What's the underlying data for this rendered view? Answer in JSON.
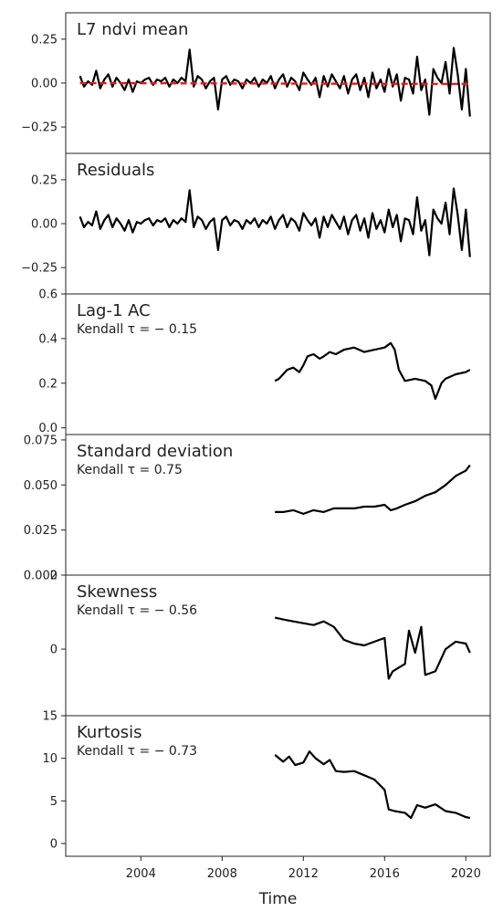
{
  "chart_data": [
    {
      "type": "line",
      "title": "L7 ndvi mean",
      "ylim": [
        -0.4,
        0.4
      ],
      "yticks": [
        -0.25,
        0.0,
        0.25
      ],
      "ytick_labels": [
        "−0.25",
        "0.00",
        "0.25"
      ],
      "series": [
        {
          "color": "#000000",
          "style": "solid",
          "x": [
            2001.0,
            2001.2,
            2001.4,
            2001.6,
            2001.8,
            2002.0,
            2002.2,
            2002.4,
            2002.6,
            2002.8,
            2003.0,
            2003.2,
            2003.4,
            2003.6,
            2003.8,
            2004.0,
            2004.2,
            2004.4,
            2004.6,
            2004.8,
            2005.0,
            2005.2,
            2005.4,
            2005.6,
            2005.8,
            2006.0,
            2006.2,
            2006.4,
            2006.6,
            2006.8,
            2007.0,
            2007.2,
            2007.4,
            2007.6,
            2007.8,
            2008.0,
            2008.2,
            2008.4,
            2008.6,
            2008.8,
            2009.0,
            2009.2,
            2009.4,
            2009.6,
            2009.8,
            2010.0,
            2010.2,
            2010.4,
            2010.6,
            2010.8,
            2011.0,
            2011.2,
            2011.4,
            2011.6,
            2011.8,
            2012.0,
            2012.2,
            2012.4,
            2012.6,
            2012.8,
            2013.0,
            2013.2,
            2013.4,
            2013.6,
            2013.8,
            2014.0,
            2014.2,
            2014.4,
            2014.6,
            2014.8,
            2015.0,
            2015.2,
            2015.4,
            2015.6,
            2015.8,
            2016.0,
            2016.2,
            2016.4,
            2016.6,
            2016.8,
            2017.0,
            2017.2,
            2017.4,
            2017.6,
            2017.8,
            2018.0,
            2018.2,
            2018.4,
            2018.6,
            2018.8,
            2019.0,
            2019.2,
            2019.4,
            2019.6,
            2019.8,
            2020.0,
            2020.2
          ],
          "y": [
            0.04,
            -0.02,
            0.01,
            -0.01,
            0.07,
            -0.03,
            0.02,
            0.05,
            -0.02,
            0.03,
            0.0,
            -0.04,
            0.02,
            -0.05,
            0.01,
            0.0,
            0.02,
            0.03,
            -0.01,
            0.02,
            0.01,
            0.03,
            -0.02,
            0.02,
            0.0,
            0.03,
            0.01,
            0.19,
            -0.02,
            0.04,
            0.02,
            -0.03,
            0.01,
            0.03,
            -0.15,
            0.02,
            0.04,
            -0.01,
            0.02,
            0.01,
            -0.03,
            0.02,
            0.0,
            0.03,
            -0.02,
            0.02,
            0.0,
            0.04,
            -0.03,
            0.02,
            0.05,
            -0.02,
            0.03,
            0.01,
            -0.04,
            0.06,
            0.02,
            -0.01,
            0.03,
            -0.08,
            0.04,
            -0.02,
            0.05,
            0.01,
            -0.03,
            0.04,
            -0.06,
            0.02,
            0.05,
            -0.04,
            0.03,
            -0.08,
            0.06,
            -0.03,
            0.02,
            -0.05,
            0.08,
            -0.02,
            0.05,
            -0.1,
            0.03,
            0.02,
            -0.06,
            0.15,
            -0.04,
            0.02,
            -0.18,
            0.08,
            0.03,
            0.0,
            0.12,
            -0.06,
            0.2,
            0.05,
            -0.15,
            0.08,
            -0.19
          ]
        },
        {
          "color": "#e41a1c",
          "style": "dashed",
          "x": [
            2001.0,
            2020.2
          ],
          "y": [
            0.0,
            -0.005
          ]
        }
      ]
    },
    {
      "type": "line",
      "title": "Residuals",
      "ylim": [
        -0.4,
        0.4
      ],
      "yticks": [
        -0.25,
        0.0,
        0.25
      ],
      "ytick_labels": [
        "−0.25",
        "0.00",
        "0.25"
      ],
      "series": [
        {
          "color": "#000000",
          "style": "solid",
          "x": [
            2001.0,
            2001.2,
            2001.4,
            2001.6,
            2001.8,
            2002.0,
            2002.2,
            2002.4,
            2002.6,
            2002.8,
            2003.0,
            2003.2,
            2003.4,
            2003.6,
            2003.8,
            2004.0,
            2004.2,
            2004.4,
            2004.6,
            2004.8,
            2005.0,
            2005.2,
            2005.4,
            2005.6,
            2005.8,
            2006.0,
            2006.2,
            2006.4,
            2006.6,
            2006.8,
            2007.0,
            2007.2,
            2007.4,
            2007.6,
            2007.8,
            2008.0,
            2008.2,
            2008.4,
            2008.6,
            2008.8,
            2009.0,
            2009.2,
            2009.4,
            2009.6,
            2009.8,
            2010.0,
            2010.2,
            2010.4,
            2010.6,
            2010.8,
            2011.0,
            2011.2,
            2011.4,
            2011.6,
            2011.8,
            2012.0,
            2012.2,
            2012.4,
            2012.6,
            2012.8,
            2013.0,
            2013.2,
            2013.4,
            2013.6,
            2013.8,
            2014.0,
            2014.2,
            2014.4,
            2014.6,
            2014.8,
            2015.0,
            2015.2,
            2015.4,
            2015.6,
            2015.8,
            2016.0,
            2016.2,
            2016.4,
            2016.6,
            2016.8,
            2017.0,
            2017.2,
            2017.4,
            2017.6,
            2017.8,
            2018.0,
            2018.2,
            2018.4,
            2018.6,
            2018.8,
            2019.0,
            2019.2,
            2019.4,
            2019.6,
            2019.8,
            2020.0,
            2020.2
          ],
          "y": [
            0.04,
            -0.02,
            0.01,
            -0.01,
            0.07,
            -0.03,
            0.02,
            0.05,
            -0.02,
            0.03,
            0.0,
            -0.04,
            0.02,
            -0.05,
            0.01,
            0.0,
            0.02,
            0.03,
            -0.01,
            0.02,
            0.01,
            0.03,
            -0.02,
            0.02,
            0.0,
            0.03,
            0.01,
            0.19,
            -0.02,
            0.04,
            0.02,
            -0.03,
            0.01,
            0.03,
            -0.15,
            0.02,
            0.04,
            -0.01,
            0.02,
            0.01,
            -0.03,
            0.02,
            0.0,
            0.03,
            -0.02,
            0.02,
            0.0,
            0.04,
            -0.03,
            0.02,
            0.05,
            -0.02,
            0.03,
            0.01,
            -0.04,
            0.06,
            0.02,
            -0.01,
            0.03,
            -0.08,
            0.04,
            -0.02,
            0.05,
            0.01,
            -0.03,
            0.04,
            -0.06,
            0.02,
            0.05,
            -0.04,
            0.03,
            -0.08,
            0.06,
            -0.03,
            0.02,
            -0.05,
            0.08,
            -0.02,
            0.05,
            -0.1,
            0.03,
            0.02,
            -0.06,
            0.15,
            -0.04,
            0.02,
            -0.18,
            0.08,
            0.03,
            0.0,
            0.12,
            -0.06,
            0.2,
            0.05,
            -0.15,
            0.08,
            -0.19
          ]
        }
      ]
    },
    {
      "type": "line",
      "title": "Lag-1 AC",
      "subtitle": "Kendall τ = − 0.15",
      "ylim": [
        -0.03,
        0.6
      ],
      "yticks": [
        0.0,
        0.2,
        0.4,
        0.6
      ],
      "ytick_labels": [
        "0.0",
        "0.2",
        "0.4",
        "0.6"
      ],
      "series": [
        {
          "color": "#000000",
          "style": "solid",
          "x": [
            2010.6,
            2010.8,
            2011.0,
            2011.2,
            2011.5,
            2011.8,
            2012.0,
            2012.2,
            2012.5,
            2012.8,
            2013.0,
            2013.3,
            2013.6,
            2014.0,
            2014.5,
            2015.0,
            2015.5,
            2016.0,
            2016.3,
            2016.5,
            2016.7,
            2017.0,
            2017.5,
            2018.0,
            2018.3,
            2018.5,
            2018.8,
            2019.0,
            2019.5,
            2020.0,
            2020.2
          ],
          "y": [
            0.21,
            0.22,
            0.24,
            0.26,
            0.27,
            0.25,
            0.28,
            0.32,
            0.33,
            0.31,
            0.32,
            0.34,
            0.33,
            0.35,
            0.36,
            0.34,
            0.35,
            0.36,
            0.38,
            0.35,
            0.26,
            0.21,
            0.22,
            0.21,
            0.19,
            0.13,
            0.2,
            0.22,
            0.24,
            0.25,
            0.26
          ]
        }
      ]
    },
    {
      "type": "line",
      "title": "Standard deviation",
      "subtitle": "Kendall τ = 0.75",
      "ylim": [
        0.0,
        0.078
      ],
      "yticks": [
        0.0,
        0.025,
        0.05,
        0.075
      ],
      "ytick_labels": [
        "0.000",
        "0.025",
        "0.050",
        "0.075"
      ],
      "series": [
        {
          "color": "#000000",
          "style": "solid",
          "x": [
            2010.6,
            2011.0,
            2011.5,
            2012.0,
            2012.5,
            2013.0,
            2013.5,
            2014.0,
            2014.5,
            2015.0,
            2015.5,
            2016.0,
            2016.3,
            2016.6,
            2017.0,
            2017.5,
            2018.0,
            2018.5,
            2019.0,
            2019.5,
            2020.0,
            2020.2
          ],
          "y": [
            0.035,
            0.035,
            0.036,
            0.034,
            0.036,
            0.035,
            0.037,
            0.037,
            0.037,
            0.038,
            0.038,
            0.039,
            0.036,
            0.037,
            0.039,
            0.041,
            0.044,
            0.046,
            0.05,
            0.055,
            0.058,
            0.061
          ]
        }
      ]
    },
    {
      "type": "line",
      "title": "Skewness",
      "subtitle": "Kendall τ = − 0.56",
      "ylim": [
        -1.8,
        2.0
      ],
      "yticks": [
        0,
        2
      ],
      "ytick_labels": [
        "0",
        "2"
      ],
      "series": [
        {
          "color": "#000000",
          "style": "solid",
          "x": [
            2010.6,
            2011.0,
            2011.5,
            2012.0,
            2012.5,
            2013.0,
            2013.5,
            2014.0,
            2014.5,
            2015.0,
            2015.5,
            2016.0,
            2016.2,
            2016.4,
            2016.7,
            2017.0,
            2017.2,
            2017.5,
            2017.8,
            2018.0,
            2018.5,
            2019.0,
            2019.5,
            2020.0,
            2020.2
          ],
          "y": [
            0.85,
            0.8,
            0.75,
            0.7,
            0.65,
            0.75,
            0.6,
            0.25,
            0.15,
            0.1,
            0.2,
            0.3,
            -0.8,
            -0.6,
            -0.5,
            -0.4,
            0.5,
            -0.1,
            0.6,
            -0.7,
            -0.6,
            0.0,
            0.2,
            0.15,
            -0.1
          ]
        }
      ]
    },
    {
      "type": "line",
      "title": "Kurtosis",
      "subtitle": "Kendall τ = − 0.73",
      "xlabel": "Time",
      "ylim": [
        -1.5,
        15.0
      ],
      "yticks": [
        0,
        5,
        10,
        15
      ],
      "ytick_labels": [
        "0",
        "5",
        "10",
        "15"
      ],
      "series": [
        {
          "color": "#000000",
          "style": "solid",
          "x": [
            2010.6,
            2011.0,
            2011.3,
            2011.6,
            2012.0,
            2012.3,
            2012.6,
            2013.0,
            2013.3,
            2013.6,
            2014.0,
            2014.5,
            2015.0,
            2015.5,
            2016.0,
            2016.2,
            2016.5,
            2017.0,
            2017.3,
            2017.6,
            2018.0,
            2018.5,
            2019.0,
            2019.5,
            2020.0,
            2020.2
          ],
          "y": [
            10.4,
            9.6,
            10.2,
            9.2,
            9.5,
            10.8,
            10.0,
            9.3,
            9.8,
            8.5,
            8.4,
            8.5,
            8.0,
            7.5,
            6.3,
            4.0,
            3.8,
            3.6,
            3.0,
            4.5,
            4.2,
            4.6,
            3.8,
            3.6,
            3.1,
            3.0
          ]
        }
      ]
    }
  ],
  "xaxis": {
    "label": "Time",
    "xlim": [
      2000.3,
      2021.2
    ],
    "ticks": [
      2004,
      2008,
      2012,
      2016,
      2020
    ],
    "tick_labels": [
      "2004",
      "2008",
      "2012",
      "2016",
      "2020"
    ]
  }
}
